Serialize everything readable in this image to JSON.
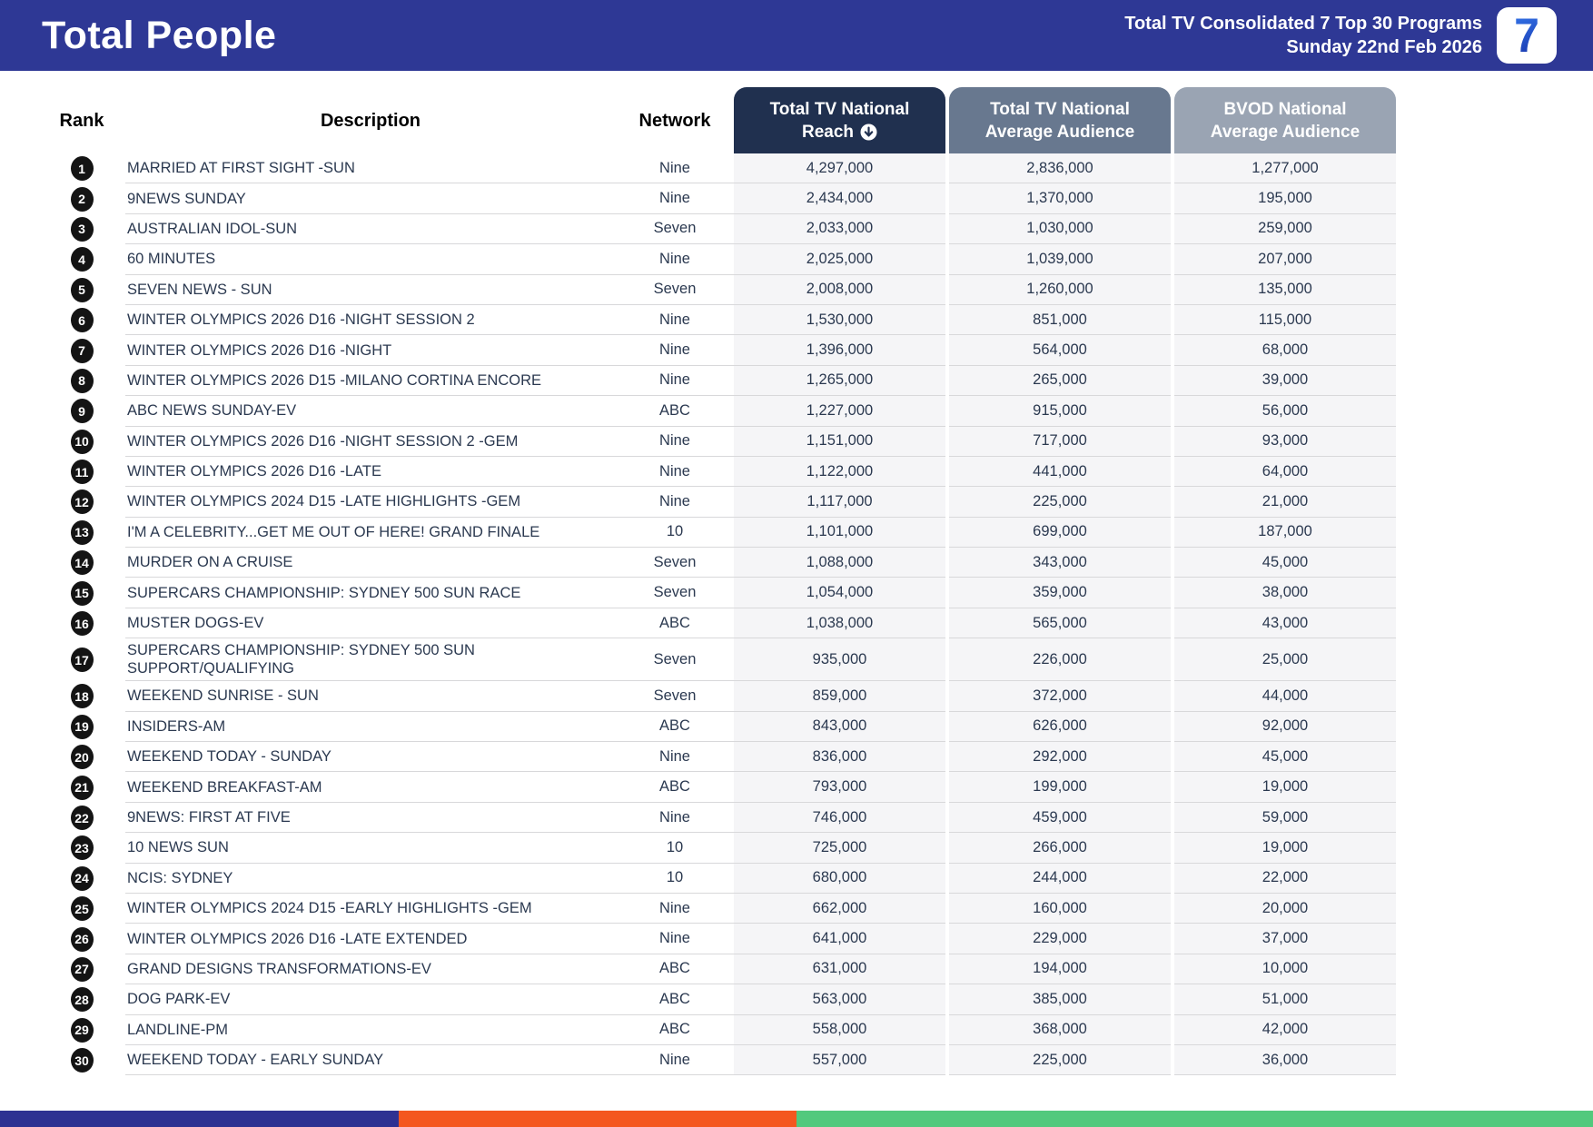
{
  "header": {
    "title": "Total People",
    "subtitle_line1": "Total TV Consolidated 7 Top 30 Programs",
    "subtitle_line2": "Sunday 22nd Feb 2026",
    "logo_text": "7"
  },
  "table": {
    "columns": {
      "rank": "Rank",
      "description": "Description",
      "network": "Network",
      "reach_line1": "Total TV National",
      "reach_line2": "Reach",
      "avg": "Total TV National Average Audience",
      "bvod": "BVOD National Average Audience"
    },
    "sort_indicator": "circled-down-arrow",
    "rows": [
      {
        "rank": "1",
        "description": "MARRIED AT FIRST SIGHT -SUN",
        "network": "Nine",
        "reach": "4,297,000",
        "avg": "2,836,000",
        "bvod": "1,277,000"
      },
      {
        "rank": "2",
        "description": "9NEWS SUNDAY",
        "network": "Nine",
        "reach": "2,434,000",
        "avg": "1,370,000",
        "bvod": "195,000"
      },
      {
        "rank": "3",
        "description": "AUSTRALIAN IDOL-SUN",
        "network": "Seven",
        "reach": "2,033,000",
        "avg": "1,030,000",
        "bvod": "259,000"
      },
      {
        "rank": "4",
        "description": "60 MINUTES",
        "network": "Nine",
        "reach": "2,025,000",
        "avg": "1,039,000",
        "bvod": "207,000"
      },
      {
        "rank": "5",
        "description": "SEVEN NEWS - SUN",
        "network": "Seven",
        "reach": "2,008,000",
        "avg": "1,260,000",
        "bvod": "135,000"
      },
      {
        "rank": "6",
        "description": "WINTER OLYMPICS 2026 D16 -NIGHT SESSION 2",
        "network": "Nine",
        "reach": "1,530,000",
        "avg": "851,000",
        "bvod": "115,000"
      },
      {
        "rank": "7",
        "description": "WINTER OLYMPICS 2026 D16 -NIGHT",
        "network": "Nine",
        "reach": "1,396,000",
        "avg": "564,000",
        "bvod": "68,000"
      },
      {
        "rank": "8",
        "description": "WINTER OLYMPICS 2026 D15 -MILANO CORTINA ENCORE",
        "network": "Nine",
        "reach": "1,265,000",
        "avg": "265,000",
        "bvod": "39,000"
      },
      {
        "rank": "9",
        "description": "ABC NEWS SUNDAY-EV",
        "network": "ABC",
        "reach": "1,227,000",
        "avg": "915,000",
        "bvod": "56,000"
      },
      {
        "rank": "10",
        "description": "WINTER OLYMPICS 2026 D16 -NIGHT SESSION 2 -GEM",
        "network": "Nine",
        "reach": "1,151,000",
        "avg": "717,000",
        "bvod": "93,000"
      },
      {
        "rank": "11",
        "description": "WINTER OLYMPICS 2026 D16 -LATE",
        "network": "Nine",
        "reach": "1,122,000",
        "avg": "441,000",
        "bvod": "64,000"
      },
      {
        "rank": "12",
        "description": "WINTER OLYMPICS 2024 D15 -LATE HIGHLIGHTS -GEM",
        "network": "Nine",
        "reach": "1,117,000",
        "avg": "225,000",
        "bvod": "21,000"
      },
      {
        "rank": "13",
        "description": "I'M A CELEBRITY...GET ME OUT OF HERE! GRAND FINALE",
        "network": "10",
        "reach": "1,101,000",
        "avg": "699,000",
        "bvod": "187,000"
      },
      {
        "rank": "14",
        "description": "MURDER ON A CRUISE",
        "network": "Seven",
        "reach": "1,088,000",
        "avg": "343,000",
        "bvod": "45,000"
      },
      {
        "rank": "15",
        "description": "SUPERCARS CHAMPIONSHIP: SYDNEY 500 SUN RACE",
        "network": "Seven",
        "reach": "1,054,000",
        "avg": "359,000",
        "bvod": "38,000"
      },
      {
        "rank": "16",
        "description": "MUSTER DOGS-EV",
        "network": "ABC",
        "reach": "1,038,000",
        "avg": "565,000",
        "bvod": "43,000"
      },
      {
        "rank": "17",
        "description": "SUPERCARS CHAMPIONSHIP: SYDNEY 500 SUN SUPPORT/QUALIFYING",
        "network": "Seven",
        "reach": "935,000",
        "avg": "226,000",
        "bvod": "25,000"
      },
      {
        "rank": "18",
        "description": "WEEKEND SUNRISE - SUN",
        "network": "Seven",
        "reach": "859,000",
        "avg": "372,000",
        "bvod": "44,000"
      },
      {
        "rank": "19",
        "description": "INSIDERS-AM",
        "network": "ABC",
        "reach": "843,000",
        "avg": "626,000",
        "bvod": "92,000"
      },
      {
        "rank": "20",
        "description": "WEEKEND TODAY - SUNDAY",
        "network": "Nine",
        "reach": "836,000",
        "avg": "292,000",
        "bvod": "45,000"
      },
      {
        "rank": "21",
        "description": "WEEKEND BREAKFAST-AM",
        "network": "ABC",
        "reach": "793,000",
        "avg": "199,000",
        "bvod": "19,000"
      },
      {
        "rank": "22",
        "description": "9NEWS: FIRST AT FIVE",
        "network": "Nine",
        "reach": "746,000",
        "avg": "459,000",
        "bvod": "59,000"
      },
      {
        "rank": "23",
        "description": "10 NEWS SUN",
        "network": "10",
        "reach": "725,000",
        "avg": "266,000",
        "bvod": "19,000"
      },
      {
        "rank": "24",
        "description": "NCIS: SYDNEY",
        "network": "10",
        "reach": "680,000",
        "avg": "244,000",
        "bvod": "22,000"
      },
      {
        "rank": "25",
        "description": "WINTER OLYMPICS 2024 D15 -EARLY HIGHLIGHTS -GEM",
        "network": "Nine",
        "reach": "662,000",
        "avg": "160,000",
        "bvod": "20,000"
      },
      {
        "rank": "26",
        "description": "WINTER OLYMPICS 2026 D16 -LATE EXTENDED",
        "network": "Nine",
        "reach": "641,000",
        "avg": "229,000",
        "bvod": "37,000"
      },
      {
        "rank": "27",
        "description": "GRAND DESIGNS TRANSFORMATIONS-EV",
        "network": "ABC",
        "reach": "631,000",
        "avg": "194,000",
        "bvod": "10,000"
      },
      {
        "rank": "28",
        "description": "DOG PARK-EV",
        "network": "ABC",
        "reach": "563,000",
        "avg": "385,000",
        "bvod": "51,000"
      },
      {
        "rank": "29",
        "description": "LANDLINE-PM",
        "network": "ABC",
        "reach": "558,000",
        "avg": "368,000",
        "bvod": "42,000"
      },
      {
        "rank": "30",
        "description": "WEEKEND TODAY - EARLY SUNDAY",
        "network": "Nine",
        "reach": "557,000",
        "avg": "225,000",
        "bvod": "36,000"
      }
    ]
  },
  "colors": {
    "header_bg": "#2e3895",
    "reach_header_bg": "#20304f",
    "avg_header_bg": "#68788f",
    "bvod_header_bg": "#9aa4b3",
    "footer_blue": "#2e3192",
    "footer_orange": "#f4571f",
    "footer_green": "#52c97d"
  },
  "footer": {
    "segments": [
      {
        "color": "#2e3192",
        "width_pct": 25
      },
      {
        "color": "#f4571f",
        "width_pct": 25
      },
      {
        "color": "#52c97d",
        "width_pct": 50
      }
    ]
  }
}
